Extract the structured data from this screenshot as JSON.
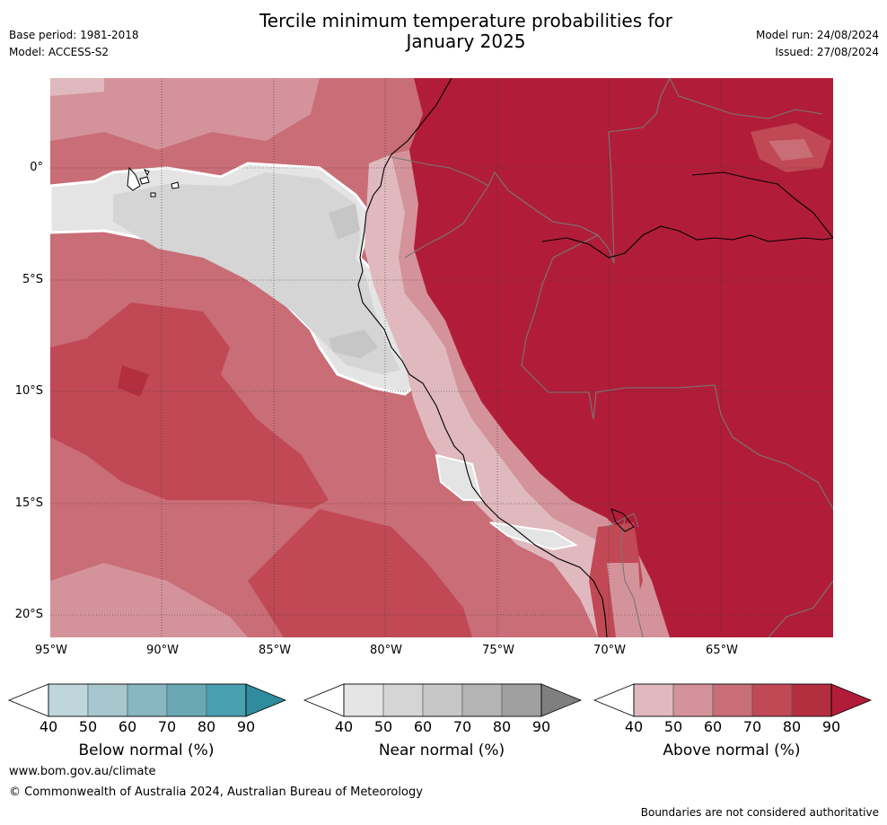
{
  "header": {
    "title_line1": "Tercile minimum temperature probabilities for",
    "title_line2": "January 2025",
    "base_period": "Base period: 1981-2018",
    "model": "Model: ACCESS-S2",
    "model_run": "Model run: 24/08/2024",
    "issued": "Issued: 27/08/2024"
  },
  "map": {
    "lat_ticks": [
      "0°",
      "5°S",
      "10°S",
      "15°S",
      "20°S"
    ],
    "lon_ticks": [
      "95°W",
      "90°W",
      "85°W",
      "80°W",
      "75°W",
      "70°W",
      "65°W"
    ]
  },
  "colorbars": [
    {
      "label": "Below normal (%)",
      "ticks": [
        "40",
        "50",
        "60",
        "70",
        "80",
        "90"
      ],
      "colors": [
        "#ffffff",
        "#bed6dc",
        "#a6c7ce",
        "#88b6c1",
        "#6aa8b5",
        "#48a0b0",
        "#2e8c9d"
      ]
    },
    {
      "label": "Near normal (%)",
      "ticks": [
        "40",
        "50",
        "60",
        "70",
        "80",
        "90"
      ],
      "colors": [
        "#ffffff",
        "#e4e4e4",
        "#d5d5d5",
        "#c6c6c6",
        "#b4b4b4",
        "#a0a0a0",
        "#7f7f7f"
      ]
    },
    {
      "label": "Above normal (%)",
      "ticks": [
        "40",
        "50",
        "60",
        "70",
        "80",
        "90"
      ],
      "colors": [
        "#ffffff",
        "#dfb9be",
        "#d4939a",
        "#c96d77",
        "#c04955",
        "#b32f40",
        "#b11d38"
      ]
    }
  ],
  "colors": {
    "above_40": "#dfb9be",
    "above_50": "#d4939a",
    "above_60": "#c96d77",
    "above_70": "#c04955",
    "above_80": "#b32f40",
    "above_90": "#b11d38",
    "near_40": "#e4e4e4",
    "near_50": "#d5d5d5",
    "near_60": "#c6c6c6"
  },
  "footer": {
    "website": "www.bom.gov.au/climate",
    "copyright": "© Commonwealth of Australia 2024, Australian Bureau of Meteorology",
    "disclaimer": "Boundaries are not considered authoritative"
  }
}
